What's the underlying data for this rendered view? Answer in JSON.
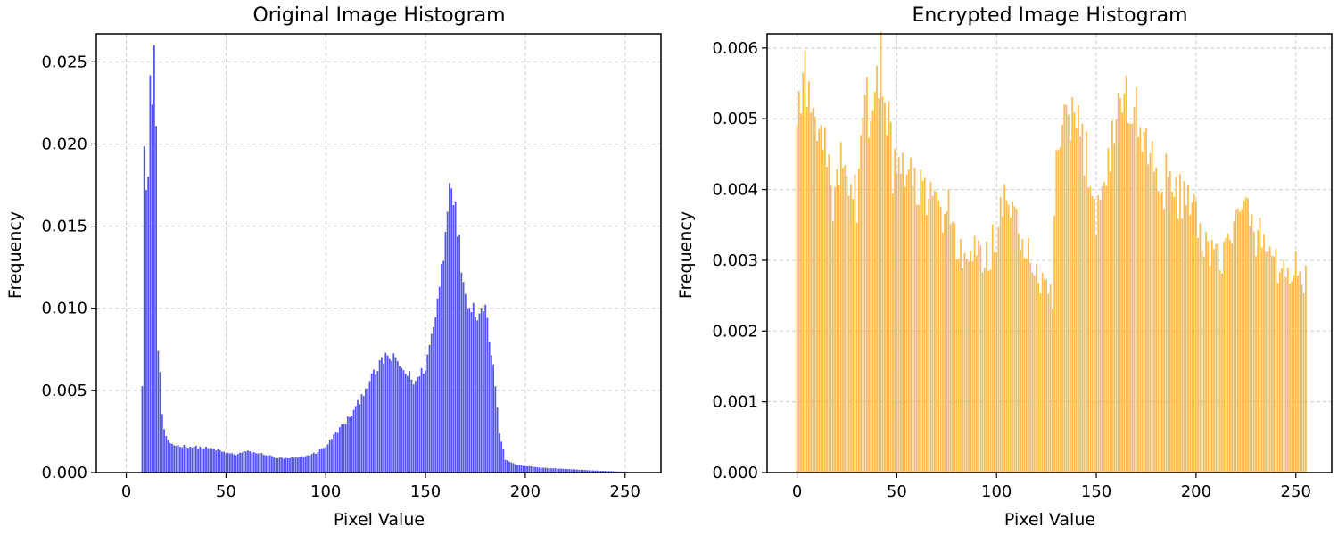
{
  "chart_data": [
    {
      "type": "bar",
      "title": "Original Image Histogram",
      "xlabel": "Pixel Value",
      "ylabel": "Frequency",
      "color": "#4444f4",
      "xlim": [
        -15,
        268
      ],
      "ylim": [
        0,
        0.0267
      ],
      "xticks": [
        0,
        50,
        100,
        150,
        200,
        250
      ],
      "yticks": [
        0.0,
        0.005,
        0.01,
        0.015,
        0.02,
        0.025
      ],
      "ytick_labels": [
        "0.000",
        "0.005",
        "0.010",
        "0.015",
        "0.020",
        "0.025"
      ],
      "grid": true,
      "anchors": [
        [
          0,
          0
        ],
        [
          7,
          0
        ],
        [
          8,
          0.0052
        ],
        [
          9,
          0.0192
        ],
        [
          10,
          0.0182
        ],
        [
          11,
          0.0175
        ],
        [
          12,
          0.0229
        ],
        [
          13,
          0.0236
        ],
        [
          14,
          0.0254
        ],
        [
          15,
          0.0212
        ],
        [
          16,
          0.0075
        ],
        [
          17,
          0.0058
        ],
        [
          18,
          0.0036
        ],
        [
          19,
          0.0025
        ],
        [
          20,
          0.0021
        ],
        [
          22,
          0.0018
        ],
        [
          25,
          0.00165
        ],
        [
          30,
          0.0016
        ],
        [
          40,
          0.0015
        ],
        [
          45,
          0.0014
        ],
        [
          50,
          0.0012
        ],
        [
          55,
          0.0011
        ],
        [
          60,
          0.0013
        ],
        [
          65,
          0.0012
        ],
        [
          70,
          0.0011
        ],
        [
          75,
          0.0009
        ],
        [
          80,
          0.00085
        ],
        [
          85,
          0.0009
        ],
        [
          90,
          0.001
        ],
        [
          95,
          0.0012
        ],
        [
          100,
          0.0016
        ],
        [
          105,
          0.0024
        ],
        [
          110,
          0.0031
        ],
        [
          115,
          0.0039
        ],
        [
          120,
          0.0052
        ],
        [
          125,
          0.0061
        ],
        [
          130,
          0.0071
        ],
        [
          135,
          0.0068
        ],
        [
          140,
          0.0061
        ],
        [
          145,
          0.0055
        ],
        [
          150,
          0.0065
        ],
        [
          155,
          0.0095
        ],
        [
          159,
          0.0135
        ],
        [
          161,
          0.0165
        ],
        [
          163,
          0.0184
        ],
        [
          165,
          0.0158
        ],
        [
          167,
          0.0138
        ],
        [
          170,
          0.0108
        ],
        [
          175,
          0.0098
        ],
        [
          180,
          0.01
        ],
        [
          183,
          0.0075
        ],
        [
          185,
          0.0055
        ],
        [
          187,
          0.0025
        ],
        [
          190,
          0.0008
        ],
        [
          195,
          0.0005
        ],
        [
          200,
          0.0004
        ],
        [
          210,
          0.00028
        ],
        [
          220,
          0.00022
        ],
        [
          230,
          0.00015
        ],
        [
          240,
          0.0001
        ],
        [
          250,
          5e-05
        ],
        [
          255,
          0
        ]
      ]
    },
    {
      "type": "bar",
      "title": "Encrypted Image Histogram",
      "xlabel": "Pixel Value",
      "ylabel": "Frequency",
      "color": "#fbb53f",
      "xlim": [
        -15,
        268
      ],
      "ylim": [
        0,
        0.0062
      ],
      "xticks": [
        0,
        50,
        100,
        150,
        200,
        250
      ],
      "yticks": [
        0.0,
        0.001,
        0.002,
        0.003,
        0.004,
        0.005,
        0.006
      ],
      "ytick_labels": [
        "0.000",
        "0.001",
        "0.002",
        "0.003",
        "0.004",
        "0.005",
        "0.006"
      ],
      "grid": true,
      "anchors": [
        [
          0,
          0.0049
        ],
        [
          2,
          0.0056
        ],
        [
          4,
          0.0055
        ],
        [
          6,
          0.0053
        ],
        [
          8,
          0.0049
        ],
        [
          10,
          0.0052
        ],
        [
          12,
          0.0051
        ],
        [
          14,
          0.0047
        ],
        [
          16,
          0.0041
        ],
        [
          18,
          0.0039
        ],
        [
          20,
          0.0041
        ],
        [
          22,
          0.0043
        ],
        [
          24,
          0.0041
        ],
        [
          26,
          0.0039
        ],
        [
          28,
          0.0038
        ],
        [
          30,
          0.0039
        ],
        [
          32,
          0.0044
        ],
        [
          34,
          0.0052
        ],
        [
          36,
          0.0051
        ],
        [
          38,
          0.0056
        ],
        [
          40,
          0.0055
        ],
        [
          42,
          0.0057
        ],
        [
          44,
          0.0053
        ],
        [
          46,
          0.005
        ],
        [
          48,
          0.0043
        ],
        [
          50,
          0.0041
        ],
        [
          55,
          0.0043
        ],
        [
          60,
          0.004
        ],
        [
          65,
          0.0039
        ],
        [
          70,
          0.0037
        ],
        [
          75,
          0.0038
        ],
        [
          78,
          0.0037
        ],
        [
          80,
          0.0031
        ],
        [
          85,
          0.0029
        ],
        [
          90,
          0.0031
        ],
        [
          95,
          0.003
        ],
        [
          100,
          0.0034
        ],
        [
          105,
          0.0038
        ],
        [
          110,
          0.0036
        ],
        [
          115,
          0.0031
        ],
        [
          120,
          0.0027
        ],
        [
          125,
          0.0026
        ],
        [
          128,
          0.0025
        ],
        [
          130,
          0.0045
        ],
        [
          135,
          0.0048
        ],
        [
          140,
          0.0049
        ],
        [
          145,
          0.0045
        ],
        [
          150,
          0.0037
        ],
        [
          153,
          0.004
        ],
        [
          156,
          0.0044
        ],
        [
          160,
          0.0051
        ],
        [
          165,
          0.0053
        ],
        [
          170,
          0.005
        ],
        [
          175,
          0.0047
        ],
        [
          180,
          0.0042
        ],
        [
          185,
          0.0041
        ],
        [
          190,
          0.0039
        ],
        [
          195,
          0.004
        ],
        [
          200,
          0.0035
        ],
        [
          205,
          0.0031
        ],
        [
          210,
          0.003
        ],
        [
          215,
          0.0032
        ],
        [
          220,
          0.0035
        ],
        [
          225,
          0.0037
        ],
        [
          230,
          0.0034
        ],
        [
          235,
          0.0032
        ],
        [
          240,
          0.003
        ],
        [
          245,
          0.0028
        ],
        [
          250,
          0.0029
        ],
        [
          255,
          0.0027
        ]
      ]
    }
  ]
}
